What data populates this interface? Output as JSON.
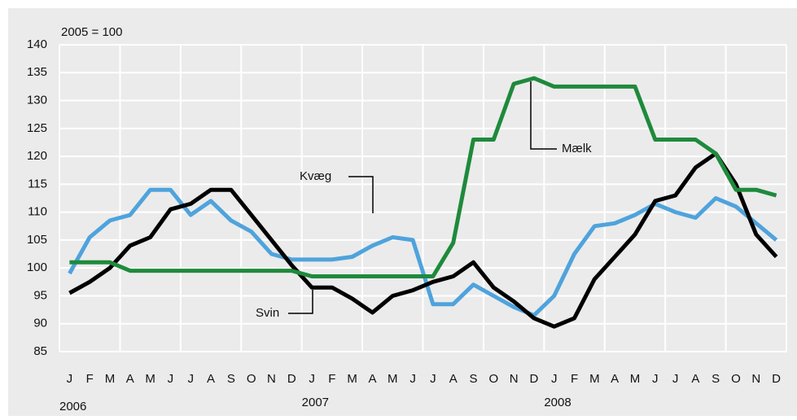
{
  "chart_data": {
    "type": "line",
    "unit_label": "2005 = 100",
    "categories": [
      "J",
      "F",
      "M",
      "A",
      "M",
      "J",
      "J",
      "A",
      "S",
      "O",
      "N",
      "D",
      "J",
      "F",
      "M",
      "A",
      "M",
      "J",
      "J",
      "A",
      "S",
      "O",
      "N",
      "D",
      "J",
      "F",
      "M",
      "A",
      "M",
      "J",
      "J",
      "A",
      "S",
      "O",
      "N",
      "D"
    ],
    "years": [
      "2006",
      "2007",
      "2008"
    ],
    "series": [
      {
        "name": "Kvæg",
        "color": "#4fa3dc",
        "values": [
          99,
          105.5,
          108.5,
          109.5,
          114,
          114,
          109.5,
          112,
          108.5,
          106.5,
          102.5,
          101.5,
          101.5,
          101.5,
          102,
          104,
          105.5,
          105,
          93.5,
          93.5,
          97,
          95,
          93,
          91.5,
          95,
          102.5,
          107.5,
          108,
          109.5,
          111.5,
          110,
          109,
          112.5,
          111,
          108,
          105
        ]
      },
      {
        "name": "Svin",
        "color": "#000000",
        "values": [
          95.5,
          97.5,
          100,
          104,
          105.5,
          110.5,
          111.5,
          114,
          114,
          109.5,
          105,
          100.5,
          96.5,
          96.5,
          94.5,
          92,
          95,
          96,
          97.5,
          98.5,
          101,
          96.5,
          94,
          91,
          89.5,
          91,
          98,
          102,
          106,
          112,
          113,
          118,
          120.5,
          115,
          106,
          102
        ]
      },
      {
        "name": "Mælk",
        "color": "#1e8a3c",
        "values": [
          101,
          101,
          101,
          99.5,
          99.5,
          99.5,
          99.5,
          99.5,
          99.5,
          99.5,
          99.5,
          99.5,
          98.5,
          98.5,
          98.5,
          98.5,
          98.5,
          98.5,
          98.5,
          104.5,
          123,
          123,
          133,
          134,
          132.5,
          132.5,
          132.5,
          132.5,
          132.5,
          123,
          123,
          123,
          120.5,
          114,
          114,
          113
        ]
      }
    ],
    "ylim": [
      85,
      140
    ],
    "yticks": [
      85,
      90,
      95,
      100,
      105,
      110,
      115,
      120,
      125,
      130,
      135,
      140
    ],
    "grid": true
  }
}
